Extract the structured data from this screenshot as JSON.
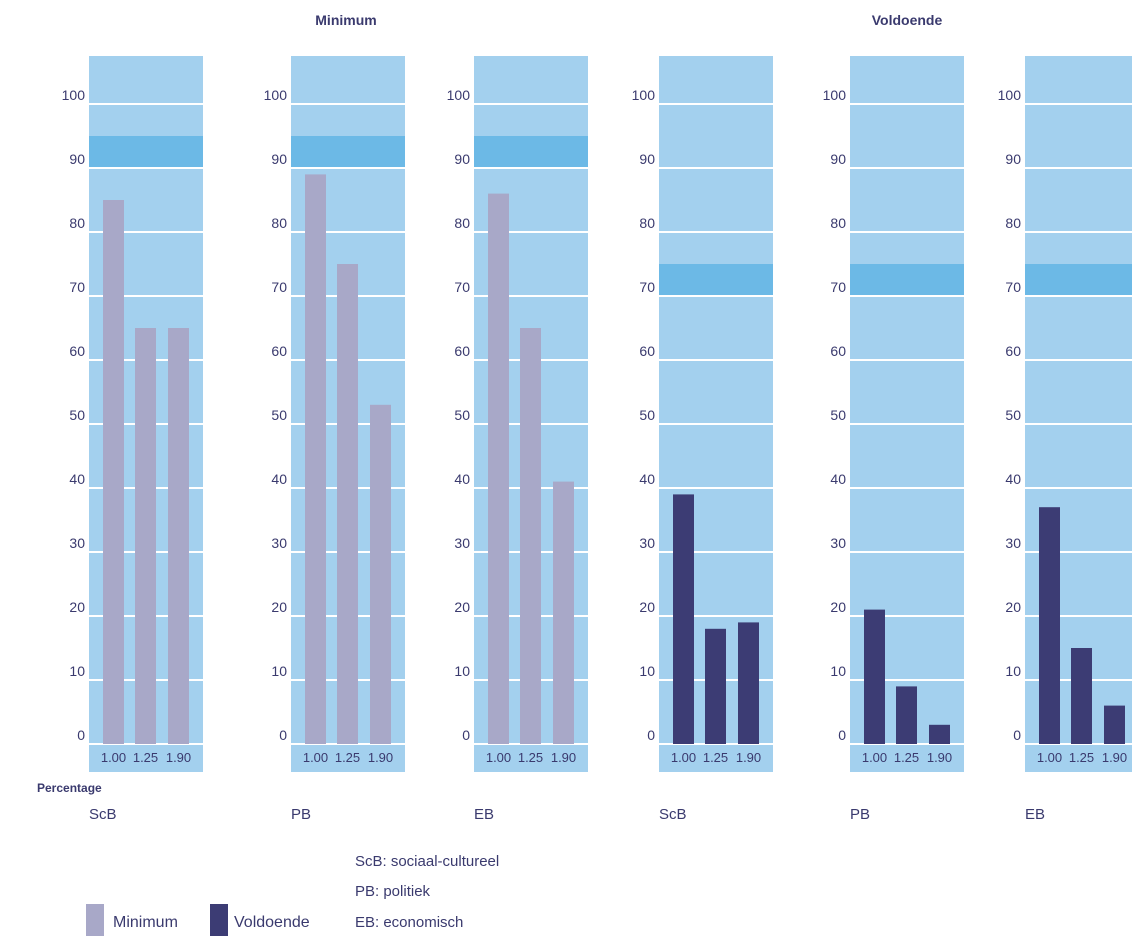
{
  "chart_data": {
    "type": "bar",
    "groups": [
      {
        "name": "Minimum",
        "target": [
          90,
          95
        ]
      },
      {
        "name": "Voldoende",
        "target": [
          70,
          75
        ]
      }
    ],
    "categories": [
      "1.00",
      "1.25",
      "1.90"
    ],
    "ylim": [
      0,
      105
    ],
    "yticks": [
      0,
      10,
      20,
      30,
      40,
      50,
      60,
      70,
      80,
      90,
      100
    ],
    "ylabel": "Percentage",
    "panels": [
      {
        "group": "Minimum",
        "label": "ScB",
        "values": [
          85,
          65,
          65
        ]
      },
      {
        "group": "Minimum",
        "label": "PB",
        "values": [
          89,
          75,
          53
        ]
      },
      {
        "group": "Minimum",
        "label": "EB",
        "values": [
          86,
          65,
          41
        ]
      },
      {
        "group": "Voldoende",
        "label": "ScB",
        "values": [
          39,
          18,
          19
        ]
      },
      {
        "group": "Voldoende",
        "label": "PB",
        "values": [
          21,
          9,
          3
        ]
      },
      {
        "group": "Voldoende",
        "label": "EB",
        "values": [
          37,
          15,
          6
        ]
      }
    ],
    "legend": [
      {
        "label": "Minimum",
        "color": "#a8a8c8"
      },
      {
        "label": "Voldoende",
        "color": "#3c3c74"
      }
    ],
    "notes": [
      "ScB: sociaal-cultureel",
      "PB: politiek",
      "EB: economisch"
    ],
    "colors": {
      "panel": "#a3d0ee",
      "target_band": "#6cb9e6",
      "gridline": "#ffffff",
      "text": "#3a3a6e"
    }
  }
}
